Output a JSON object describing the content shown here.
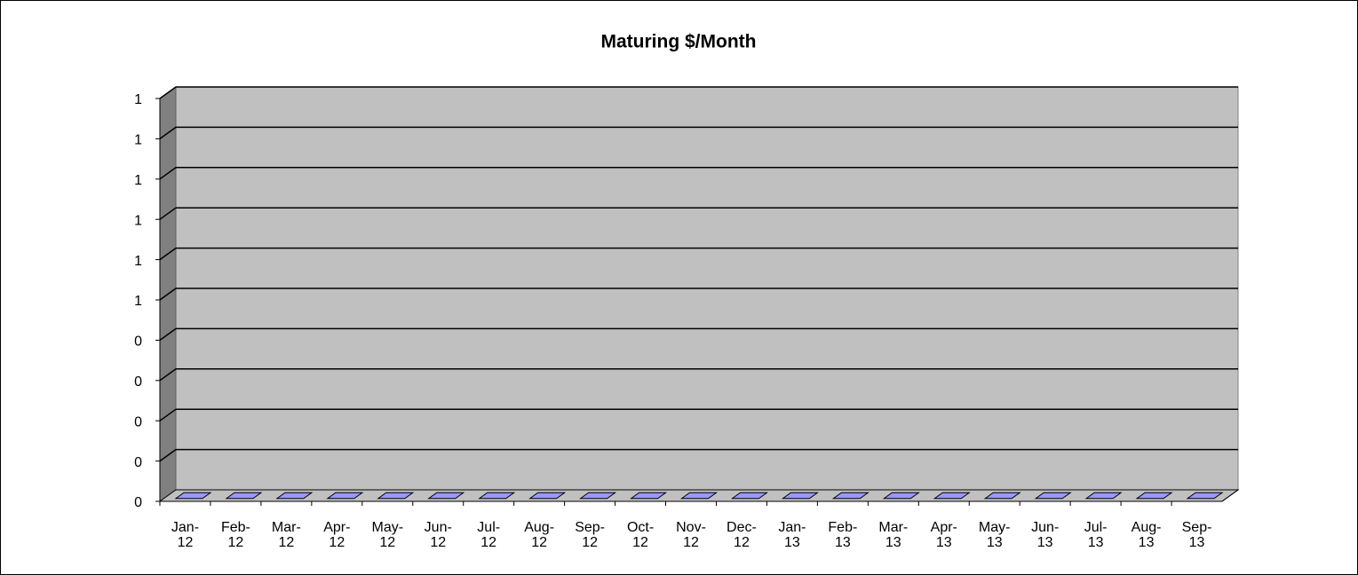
{
  "chart_data": {
    "type": "bar",
    "title": "Maturing $/Month",
    "categories": [
      "Jan-12",
      "Feb-12",
      "Mar-12",
      "Apr-12",
      "May-12",
      "Jun-12",
      "Jul-12",
      "Aug-12",
      "Sep-12",
      "Oct-12",
      "Nov-12",
      "Dec-12",
      "Jan-13",
      "Feb-13",
      "Mar-13",
      "Apr-13",
      "May-13",
      "Jun-13",
      "Jul-13",
      "Aug-13",
      "Sep-13"
    ],
    "values": [
      0,
      0,
      0,
      0,
      0,
      0,
      0,
      0,
      0,
      0,
      0,
      0,
      0,
      0,
      0,
      0,
      0,
      0,
      0,
      0,
      0
    ],
    "color": "#9999ff",
    "ylim": [
      0,
      1
    ],
    "yticks": [
      0,
      {
        "value": 0.1,
        "label": "0"
      },
      {
        "value": 0.2,
        "label": "0"
      },
      {
        "value": 0.3,
        "label": "0"
      },
      {
        "value": 0.4,
        "label": "0"
      },
      {
        "value": 0.5,
        "label": "1"
      },
      {
        "value": 0.6,
        "label": "1"
      },
      {
        "value": 0.7,
        "label": "1"
      },
      {
        "value": 0.8,
        "label": "1"
      },
      {
        "value": 0.9,
        "label": "1"
      },
      1
    ],
    "grid": true
  }
}
